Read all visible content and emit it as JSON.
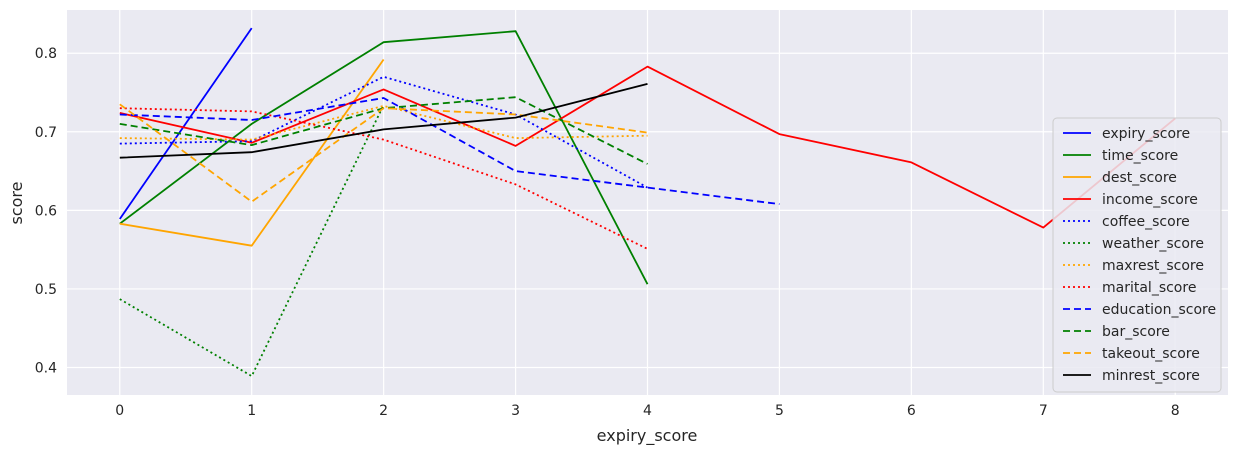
{
  "chart_data": {
    "type": "line",
    "title": "",
    "xlabel": "expiry_score",
    "ylabel": "score",
    "xlim": [
      -0.4,
      8.4
    ],
    "ylim": [
      0.365,
      0.855
    ],
    "xticks": [
      0,
      1,
      2,
      3,
      4,
      5,
      6,
      7,
      8
    ],
    "yticks": [
      0.4,
      0.5,
      0.6,
      0.7,
      0.8
    ],
    "ytick_labels": [
      "0.4",
      "0.5",
      "0.6",
      "0.7",
      "0.8"
    ],
    "grid": true,
    "legend_position": "right",
    "series": [
      {
        "name": "expiry_score",
        "color": "#0000ff",
        "style": "solid",
        "x": [
          0,
          1
        ],
        "values": [
          0.589,
          0.832
        ]
      },
      {
        "name": "time_score",
        "color": "#008000",
        "style": "solid",
        "x": [
          0,
          1,
          2,
          3,
          4
        ],
        "values": [
          0.583,
          0.71,
          0.814,
          0.828,
          0.506
        ]
      },
      {
        "name": "dest_score",
        "color": "#ffa500",
        "style": "solid",
        "x": [
          0,
          1,
          2
        ],
        "values": [
          0.583,
          0.555,
          0.792
        ]
      },
      {
        "name": "income_score",
        "color": "#ff0000",
        "style": "solid",
        "x": [
          0,
          1,
          2,
          3,
          4,
          5,
          6,
          7,
          8
        ],
        "values": [
          0.724,
          0.686,
          0.754,
          0.682,
          0.783,
          0.697,
          0.661,
          0.578,
          0.717
        ]
      },
      {
        "name": "coffee_score",
        "color": "#0000ff",
        "style": "dotted",
        "x": [
          0,
          1,
          2,
          3,
          4
        ],
        "values": [
          0.685,
          0.688,
          0.77,
          0.722,
          0.629
        ]
      },
      {
        "name": "weather_score",
        "color": "#008000",
        "style": "dotted",
        "x": [
          0,
          1,
          2
        ],
        "values": [
          0.487,
          0.389,
          0.734
        ]
      },
      {
        "name": "maxrest_score",
        "color": "#ffa500",
        "style": "dotted",
        "x": [
          0,
          1,
          2,
          3,
          4
        ],
        "values": [
          0.692,
          0.69,
          0.733,
          0.692,
          0.695
        ]
      },
      {
        "name": "marital_score",
        "color": "#ff0000",
        "style": "dotted",
        "x": [
          0,
          1,
          2,
          3,
          4
        ],
        "values": [
          0.73,
          0.726,
          0.69,
          0.633,
          0.551
        ]
      },
      {
        "name": "education_score",
        "color": "#0000ff",
        "style": "dashed",
        "x": [
          0,
          1,
          2,
          3,
          4,
          5
        ],
        "values": [
          0.722,
          0.715,
          0.743,
          0.65,
          0.629,
          0.608
        ]
      },
      {
        "name": "bar_score",
        "color": "#008000",
        "style": "dashed",
        "x": [
          0,
          1,
          2,
          3,
          4
        ],
        "values": [
          0.71,
          0.683,
          0.73,
          0.744,
          0.659
        ]
      },
      {
        "name": "takeout_score",
        "color": "#ffa500",
        "style": "dashed",
        "x": [
          0,
          1,
          2,
          3,
          4
        ],
        "values": [
          0.735,
          0.611,
          0.73,
          0.722,
          0.699
        ]
      },
      {
        "name": "minrest_score",
        "color": "#000000",
        "style": "solid",
        "x": [
          0,
          1,
          2,
          3,
          4
        ],
        "values": [
          0.667,
          0.674,
          0.703,
          0.718,
          0.761
        ]
      }
    ]
  }
}
